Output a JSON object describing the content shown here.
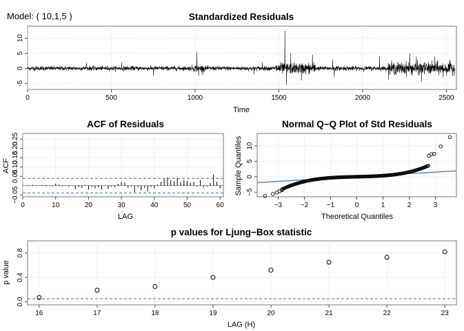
{
  "header": {
    "model_label": "Model: ( 10,1,5 )"
  },
  "chart_data": [
    {
      "id": "std_residuals",
      "type": "line",
      "title": "Standardized Residuals",
      "xlabel": "Time",
      "ylabel": "",
      "xlim": [
        0,
        2560
      ],
      "ylim": [
        -7,
        14
      ],
      "xticks": [
        0,
        500,
        1000,
        1500,
        2000,
        2500
      ],
      "yticks": [
        -5,
        0,
        5,
        10
      ],
      "n_points": 2550,
      "series": [
        {
          "values_note": "",
          "color": "#000000"
        }
      ],
      "spikes": [
        {
          "x": 1010,
          "y": 5.5
        },
        {
          "x": 1020,
          "y": -2.5
        },
        {
          "x": 1535,
          "y": 12.5
        },
        {
          "x": 1545,
          "y": -5.5
        },
        {
          "x": 1570,
          "y": 5.0
        },
        {
          "x": 1635,
          "y": -4.0
        },
        {
          "x": 1700,
          "y": 4.5
        },
        {
          "x": 1820,
          "y": 3.0
        },
        {
          "x": 1830,
          "y": -3.0
        },
        {
          "x": 2100,
          "y": 4.0
        },
        {
          "x": 2280,
          "y": 5.0
        },
        {
          "x": 2320,
          "y": 4.0
        },
        {
          "x": 2350,
          "y": -4.5
        },
        {
          "x": 2430,
          "y": 4.0
        },
        {
          "x": 2480,
          "y": -3.0
        },
        {
          "x": 750,
          "y": -2.5
        },
        {
          "x": 560,
          "y": 2.0
        },
        {
          "x": 350,
          "y": 1.8
        },
        {
          "x": 1350,
          "y": -2.0
        },
        {
          "x": 1400,
          "y": 2.0
        }
      ]
    },
    {
      "id": "acf_residuals",
      "type": "bar",
      "title": "ACF of Residuals",
      "xlabel": "LAG",
      "ylabel": "ACF",
      "xlim": [
        0,
        61
      ],
      "ylim": [
        -0.06,
        0.28
      ],
      "xticks": [
        0,
        10,
        20,
        30,
        40,
        50,
        60
      ],
      "yticks": [
        -0.05,
        0.05,
        0.1,
        0.15,
        0.2,
        0.25
      ],
      "yticklabels": [
        "−0.05",
        "0.05",
        "0.10",
        "0.15",
        "0.20",
        "0.25"
      ],
      "conf_band": [
        -0.039,
        0.039
      ],
      "lags": [
        1,
        2,
        3,
        4,
        5,
        6,
        7,
        8,
        9,
        10,
        11,
        12,
        13,
        14,
        15,
        16,
        17,
        18,
        19,
        20,
        21,
        22,
        23,
        24,
        25,
        26,
        27,
        28,
        29,
        30,
        31,
        32,
        33,
        34,
        35,
        36,
        37,
        38,
        39,
        40,
        41,
        42,
        43,
        44,
        45,
        46,
        47,
        48,
        49,
        50,
        51,
        52,
        53,
        54,
        55,
        56,
        57,
        58,
        59,
        60
      ],
      "values": [
        0.002,
        -0.003,
        0.004,
        -0.002,
        0.001,
        0.003,
        -0.004,
        0.002,
        -0.003,
        0.01,
        0.005,
        -0.004,
        0.003,
        -0.006,
        0.002,
        -0.018,
        -0.008,
        -0.012,
        0.004,
        -0.02,
        -0.006,
        -0.015,
        -0.01,
        -0.02,
        0.003,
        -0.018,
        -0.006,
        -0.008,
        0.01,
        0.02,
        0.018,
        -0.01,
        -0.005,
        -0.035,
        -0.008,
        -0.025,
        -0.012,
        -0.03,
        -0.008,
        -0.015,
        0.006,
        0.02,
        0.035,
        0.045,
        0.03,
        0.025,
        0.04,
        0.02,
        0.03,
        0.025,
        0.015,
        0.02,
        -0.005,
        0.03,
        -0.01,
        -0.005,
        0.015,
        0.06,
        0.02,
        -0.015
      ]
    },
    {
      "id": "qq_plot",
      "type": "scatter",
      "title": "Normal Q−Q Plot of Std Residuals",
      "xlabel": "Theoretical Quantiles",
      "ylabel": "Sample Quantiles",
      "xlim": [
        -3.8,
        3.8
      ],
      "ylim": [
        -6.5,
        14
      ],
      "xticks": [
        -3,
        -2,
        -1,
        0,
        1,
        2,
        3
      ],
      "xticklabels": [
        "−3",
        "−2",
        "−1",
        "0",
        "1",
        "2",
        "3"
      ],
      "yticks": [
        -5,
        0,
        5,
        10
      ],
      "yticklabels": [
        "−5",
        "0",
        "5",
        "10"
      ],
      "ref_line": {
        "slope": 0.5,
        "intercept": 0.0,
        "color": "#2f6fb5"
      },
      "extreme_points": [
        {
          "x": -3.5,
          "y": -6.2
        },
        {
          "x": -3.2,
          "y": -5.6
        },
        {
          "x": -3.05,
          "y": -5.1
        },
        {
          "x": -2.95,
          "y": -4.7
        },
        {
          "x": -2.85,
          "y": -4.3
        },
        {
          "x": 2.75,
          "y": 6.8
        },
        {
          "x": 2.85,
          "y": 7.3
        },
        {
          "x": 2.95,
          "y": 7.4
        },
        {
          "x": 3.2,
          "y": 9.8
        },
        {
          "x": 3.55,
          "y": 12.8
        }
      ]
    },
    {
      "id": "ljung_box",
      "type": "scatter",
      "title": "p values for Ljung−Box statistic",
      "xlabel": "LAG (H)",
      "ylabel": "p value",
      "xlim": [
        15.8,
        23.2
      ],
      "ylim": [
        -0.05,
        1.0
      ],
      "xticks": [
        16,
        17,
        18,
        19,
        20,
        21,
        22,
        23
      ],
      "yticks": [
        0.0,
        0.4,
        0.8
      ],
      "yticklabels": [
        "0.0",
        "0.4",
        "0.8"
      ],
      "threshold": 0.05,
      "x": [
        16,
        17,
        18,
        19,
        20,
        21,
        22,
        23
      ],
      "values": [
        0.07,
        0.19,
        0.25,
        0.4,
        0.52,
        0.65,
        0.73,
        0.82
      ]
    }
  ]
}
